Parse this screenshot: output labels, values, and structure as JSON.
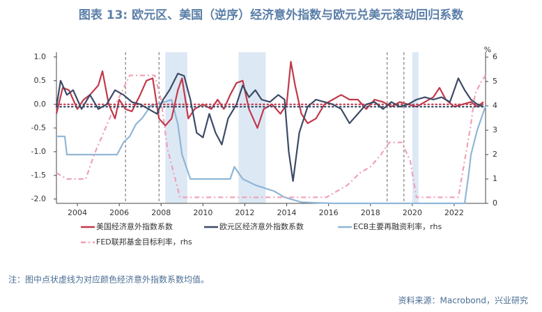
{
  "chart_data": {
    "type": "line",
    "title": "图表 13: 欧元区、美国（逆序）经济意外指数与欧元兑美元滚动回归系数",
    "note": "注：图中点状虚线为对应颜色经济意外指数系数均值。",
    "source": "资料来源：Macrobond，兴业研究",
    "y2_unit": "%",
    "xlim": [
      2003,
      2023.5
    ],
    "xticks": [
      2004,
      2006,
      2008,
      2010,
      2012,
      2014,
      2016,
      2018,
      2020,
      2022
    ],
    "ylim": [
      -2.09,
      1.1
    ],
    "yticks": [
      {
        "value": 1,
        "label": "1.0"
      },
      {
        "value": 0.5,
        "label": "0.5"
      },
      {
        "value": 0,
        "label": "0.0"
      },
      {
        "value": -0.5,
        "label": "-0.5"
      },
      {
        "value": -1,
        "label": "-1.0"
      },
      {
        "value": -1.5,
        "label": "-1.5"
      },
      {
        "value": -2,
        "label": "-2.0"
      }
    ],
    "y2lim": [
      0,
      6.2
    ],
    "y2ticks": [
      0,
      1,
      2,
      3,
      4,
      5,
      6
    ],
    "shaded_periods": [
      [
        2008.2,
        2009.25
      ],
      [
        2011.7,
        2013.0
      ],
      [
        2020.0,
        2020.3
      ]
    ],
    "vlines": [
      2006.3,
      2007.9,
      2018.8,
      2019.6
    ],
    "series": [
      {
        "name": "美国经济意外指数系数",
        "color": "#c0394b",
        "style": "solid",
        "mean": 0.0,
        "x": [
          2003.0,
          2003.3,
          2003.6,
          2004.0,
          2004.3,
          2004.6,
          2005.0,
          2005.2,
          2005.5,
          2005.8,
          2006.0,
          2006.3,
          2006.6,
          2007.0,
          2007.3,
          2007.6,
          2007.9,
          2008.2,
          2008.5,
          2008.8,
          2009.0,
          2009.3,
          2009.6,
          2010.0,
          2010.4,
          2010.7,
          2011.0,
          2011.3,
          2011.6,
          2011.9,
          2012.2,
          2012.6,
          2012.9,
          2013.3,
          2013.7,
          2014.0,
          2014.2,
          2014.4,
          2014.7,
          2015.0,
          2015.4,
          2015.8,
          2016.2,
          2016.6,
          2017.0,
          2017.4,
          2017.8,
          2018.2,
          2018.6,
          2019.0,
          2019.4,
          2019.8,
          2020.2,
          2020.6,
          2021.0,
          2021.3,
          2021.6,
          2022.0,
          2022.4,
          2022.8,
          2023.1,
          2023.4
        ],
        "values": [
          -0.2,
          0.35,
          0.3,
          -0.1,
          0.1,
          0.2,
          0.4,
          0.7,
          0.0,
          -0.3,
          0.1,
          -0.1,
          -0.15,
          0.2,
          0.5,
          0.55,
          -0.3,
          -0.45,
          -0.3,
          0.3,
          0.55,
          -0.3,
          -0.1,
          0.0,
          -0.1,
          0.1,
          -0.1,
          0.2,
          0.45,
          0.5,
          -0.1,
          -0.5,
          -0.1,
          0.0,
          -0.2,
          0.0,
          0.9,
          0.4,
          -0.2,
          -0.4,
          -0.3,
          0.0,
          0.1,
          0.2,
          0.1,
          0.1,
          -0.1,
          0.1,
          0.05,
          -0.05,
          0.05,
          0.0,
          -0.05,
          0.05,
          0.15,
          0.35,
          0.1,
          -0.05,
          0.0,
          0.05,
          -0.05,
          0.05
        ]
      },
      {
        "name": "欧元区经济意外指数系数",
        "color": "#3c4a66",
        "style": "solid",
        "mean": -0.05,
        "x": [
          2003.0,
          2003.2,
          2003.5,
          2003.8,
          2004.2,
          2004.6,
          2005.0,
          2005.4,
          2005.8,
          2006.2,
          2006.6,
          2007.0,
          2007.4,
          2007.8,
          2008.1,
          2008.4,
          2008.8,
          2009.1,
          2009.4,
          2009.7,
          2010.0,
          2010.3,
          2010.6,
          2010.9,
          2011.2,
          2011.6,
          2011.9,
          2012.2,
          2012.5,
          2012.8,
          2013.2,
          2013.6,
          2013.9,
          2014.1,
          2014.3,
          2014.6,
          2015.0,
          2015.4,
          2015.8,
          2016.2,
          2016.6,
          2017.0,
          2017.4,
          2017.8,
          2018.2,
          2018.6,
          2019.0,
          2019.4,
          2019.8,
          2020.2,
          2020.6,
          2021.0,
          2021.4,
          2021.8,
          2022.2,
          2022.5,
          2022.8,
          2023.1,
          2023.4
        ],
        "values": [
          -0.05,
          0.5,
          0.2,
          0.3,
          -0.1,
          0.2,
          -0.1,
          0.0,
          0.3,
          0.2,
          0.05,
          0.0,
          -0.1,
          -0.2,
          0.1,
          0.3,
          0.65,
          0.6,
          0.1,
          -0.6,
          -0.7,
          -0.2,
          -0.6,
          -0.85,
          -0.3,
          0.0,
          0.4,
          0.15,
          0.3,
          0.1,
          0.05,
          0.2,
          0.1,
          -1.0,
          -1.62,
          -0.6,
          -0.05,
          0.1,
          0.05,
          0.0,
          -0.1,
          -0.4,
          -0.2,
          0.0,
          0.05,
          -0.1,
          0.05,
          -0.05,
          0.0,
          0.1,
          0.15,
          0.1,
          0.15,
          0.05,
          0.55,
          0.3,
          0.1,
          0.0,
          -0.05
        ]
      },
      {
        "name": "ECB主要再融资利率，rhs",
        "color": "#8fb6d6",
        "style": "solid",
        "axis": "y2",
        "x": [
          2003.0,
          2003.4,
          2003.5,
          2005.9,
          2006.2,
          2006.5,
          2006.8,
          2007.1,
          2007.5,
          2008.5,
          2008.8,
          2009.0,
          2009.2,
          2009.4,
          2011.3,
          2011.5,
          2011.9,
          2012.5,
          2013.4,
          2013.9,
          2014.7,
          2016.2,
          2022.5,
          2022.7,
          2022.8,
          2022.95,
          2023.1,
          2023.3,
          2023.5
        ],
        "values": [
          2.75,
          2.75,
          2.0,
          2.0,
          2.5,
          2.75,
          3.25,
          3.5,
          4.0,
          4.25,
          3.25,
          2.0,
          1.5,
          1.0,
          1.0,
          1.5,
          1.0,
          0.75,
          0.5,
          0.25,
          0.05,
          0.0,
          0.0,
          1.25,
          2.0,
          2.5,
          3.0,
          3.5,
          4.0
        ]
      },
      {
        "name": "FED联邦基金目标利率，rhs",
        "color": "#f0a0b4",
        "style": "dashdot",
        "axis": "y2",
        "x": [
          2003.0,
          2003.5,
          2004.4,
          2004.8,
          2005.3,
          2005.8,
          2006.5,
          2007.7,
          2008.0,
          2008.3,
          2008.9,
          2015.9,
          2016.9,
          2017.5,
          2018.0,
          2018.5,
          2018.9,
          2019.5,
          2019.9,
          2020.2,
          2022.2,
          2022.5,
          2022.8,
          2023.0,
          2023.3,
          2023.5
        ],
        "values": [
          1.25,
          1.0,
          1.0,
          2.0,
          3.0,
          4.0,
          5.25,
          5.25,
          4.25,
          2.25,
          0.25,
          0.25,
          0.75,
          1.25,
          1.5,
          2.0,
          2.5,
          2.5,
          1.75,
          0.25,
          0.25,
          1.75,
          3.25,
          4.5,
          5.0,
          5.25
        ]
      }
    ]
  }
}
